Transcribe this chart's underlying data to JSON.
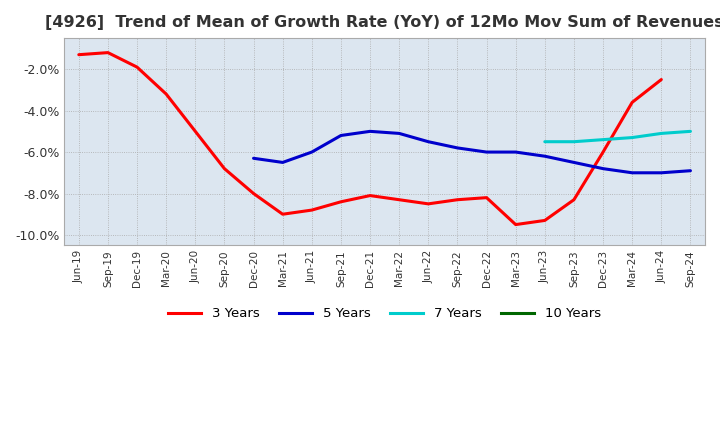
{
  "title": "[4926]  Trend of Mean of Growth Rate (YoY) of 12Mo Mov Sum of Revenues",
  "title_fontsize": 11.5,
  "ylim": [
    -0.105,
    -0.005
  ],
  "yticks": [
    -0.1,
    -0.08,
    -0.06,
    -0.04,
    -0.02
  ],
  "background_color": "#ffffff",
  "plot_bg_color": "#dce6f0",
  "grid_color": "#aaaaaa",
  "legend_labels": [
    "3 Years",
    "5 Years",
    "7 Years",
    "10 Years"
  ],
  "legend_colors": [
    "#ff0000",
    "#0000cc",
    "#00cccc",
    "#006600"
  ],
  "x_labels": [
    "Jun-19",
    "Sep-19",
    "Dec-19",
    "Mar-20",
    "Jun-20",
    "Sep-20",
    "Dec-20",
    "Mar-21",
    "Jun-21",
    "Sep-21",
    "Dec-21",
    "Mar-22",
    "Jun-22",
    "Sep-22",
    "Dec-22",
    "Mar-23",
    "Jun-23",
    "Sep-23",
    "Dec-23",
    "Mar-24",
    "Jun-24",
    "Sep-24"
  ],
  "line_3y": [
    -0.013,
    -0.012,
    -0.019,
    -0.032,
    -0.05,
    -0.068,
    -0.08,
    -0.09,
    -0.088,
    -0.084,
    -0.081,
    -0.083,
    -0.085,
    -0.083,
    -0.082,
    -0.095,
    -0.093,
    -0.083,
    -0.06,
    -0.036,
    -0.025,
    null
  ],
  "line_5y": [
    null,
    null,
    null,
    null,
    null,
    null,
    -0.063,
    -0.065,
    -0.06,
    -0.052,
    -0.05,
    -0.051,
    -0.055,
    -0.058,
    -0.06,
    -0.06,
    -0.062,
    -0.065,
    -0.068,
    -0.07,
    -0.07,
    -0.069
  ],
  "line_7y": [
    null,
    null,
    null,
    null,
    null,
    null,
    null,
    null,
    null,
    null,
    null,
    null,
    null,
    null,
    null,
    null,
    -0.055,
    -0.055,
    -0.054,
    -0.053,
    -0.051,
    -0.05
  ],
  "line_10y": [
    null,
    null,
    null,
    null,
    null,
    null,
    null,
    null,
    null,
    null,
    null,
    null,
    null,
    null,
    null,
    null,
    null,
    null,
    null,
    null,
    null,
    null
  ]
}
